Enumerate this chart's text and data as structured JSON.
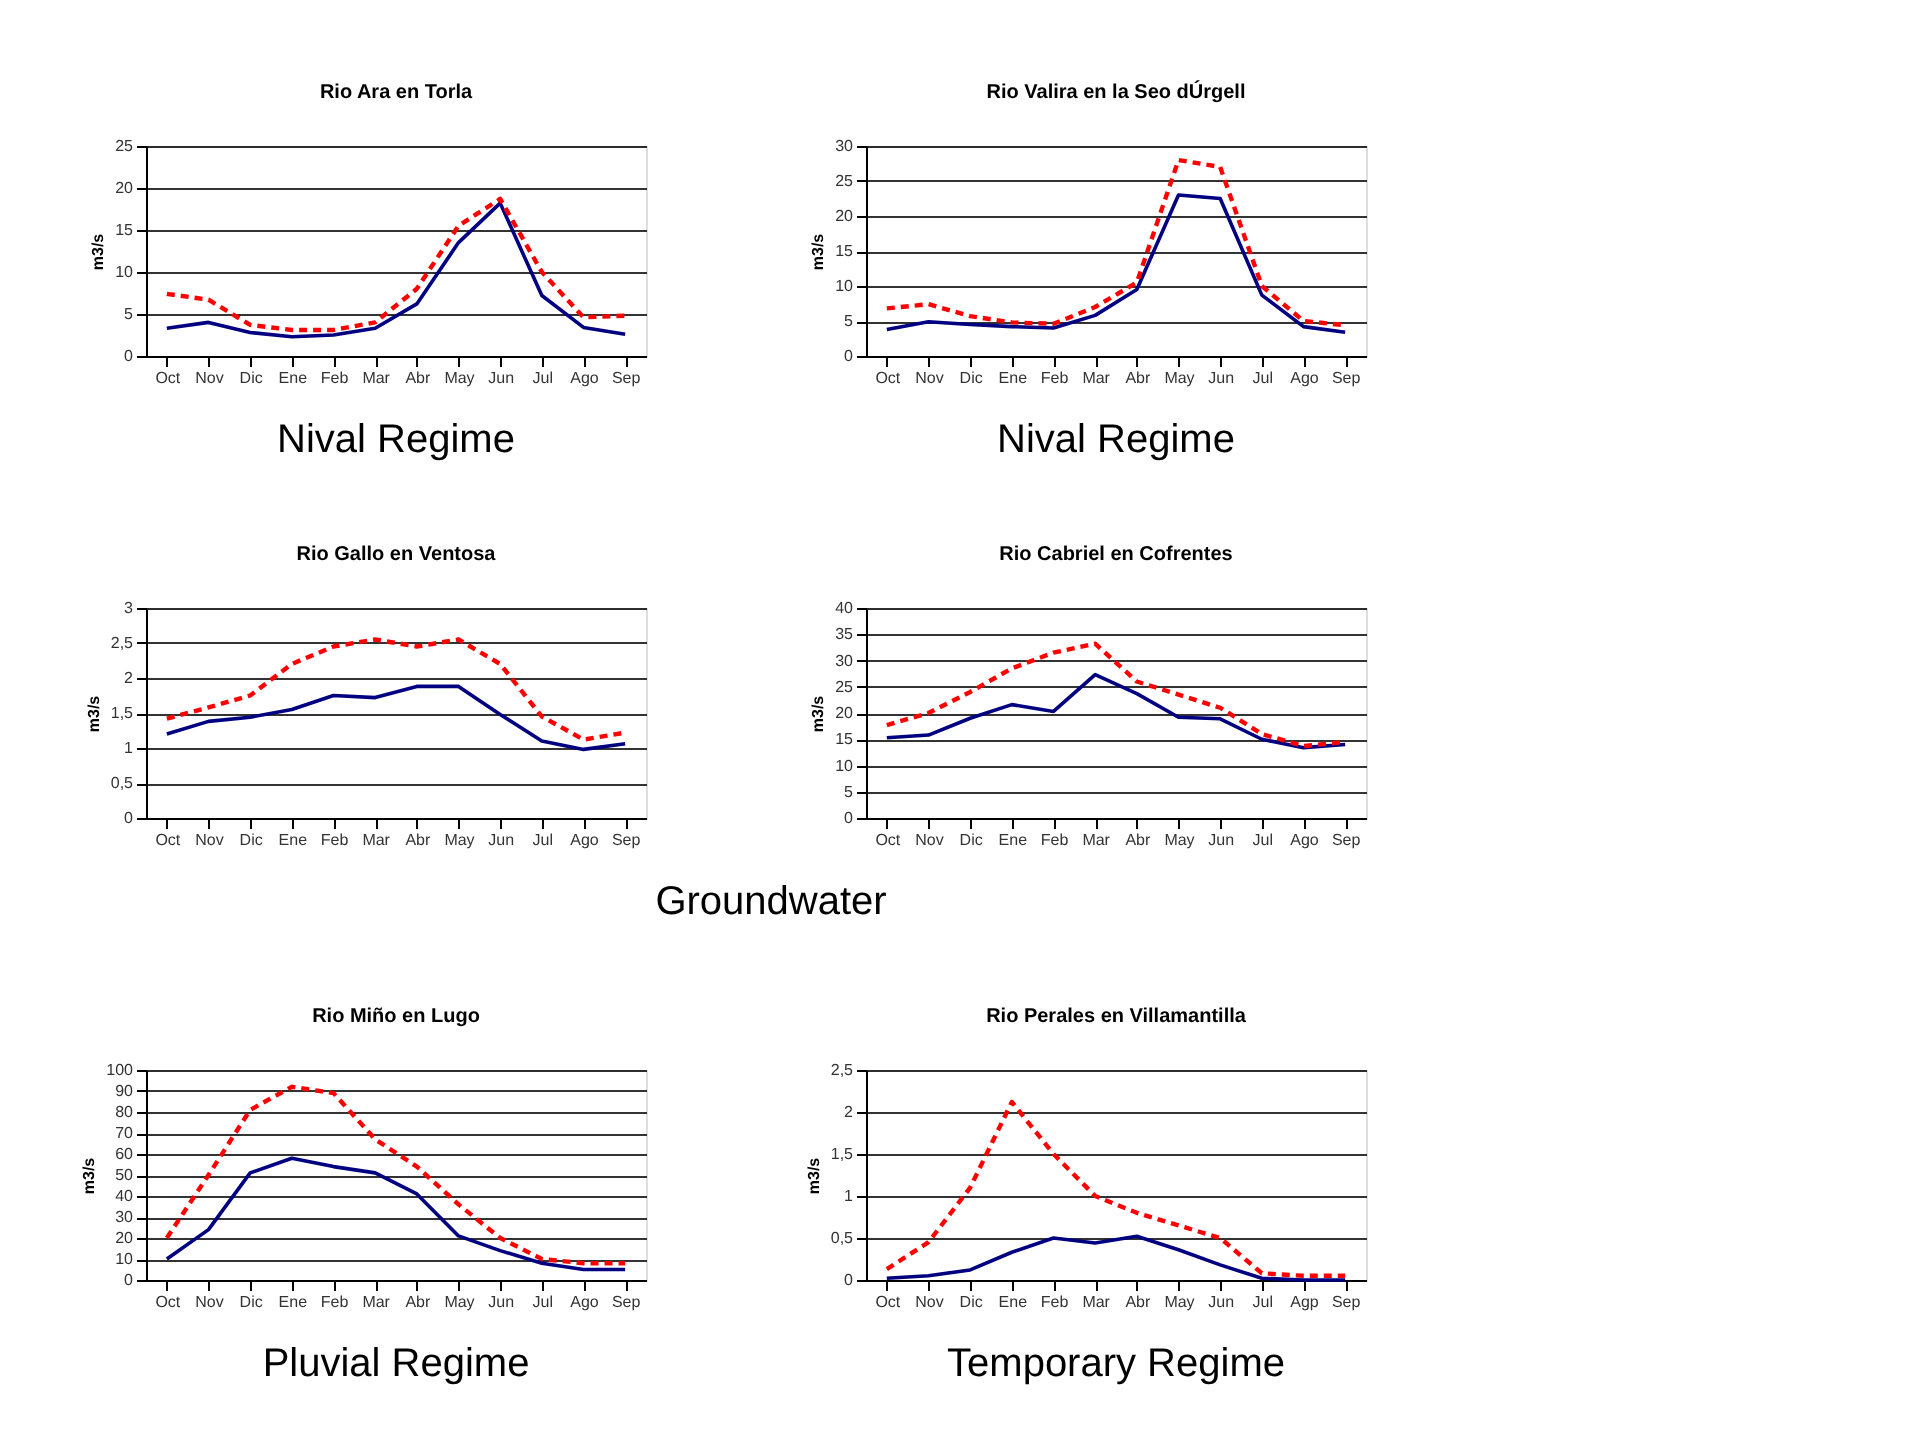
{
  "chart_data": [
    {
      "type": "line",
      "title": "Rio Ara en Torla",
      "ylabel": "m3/s",
      "annotations": [
        "Nival Regime"
      ],
      "categories": [
        "Oct",
        "Nov",
        "Dic",
        "Ene",
        "Feb",
        "Mar",
        "Abr",
        "May",
        "Jun",
        "Jul",
        "Ago",
        "Sep"
      ],
      "ylim": [
        0,
        25
      ],
      "yticks": [
        0,
        5,
        10,
        15,
        20,
        25
      ],
      "grid": "y",
      "marker": "none",
      "series": [
        {
          "color": "#000080",
          "line_style": "solid",
          "values": [
            3.3,
            4,
            2.8,
            2.3,
            2.5,
            3.3,
            6.2,
            13.5,
            18.2,
            7.2,
            3.4,
            2.6
          ]
        },
        {
          "color": "#ff0000",
          "line_style": "dashed",
          "values": [
            7.4,
            6.7,
            3.7,
            3.1,
            3.1,
            4,
            8,
            15.5,
            18.7,
            10,
            4.6,
            4.8
          ]
        }
      ]
    },
    {
      "type": "line",
      "title": "Rio Valira en la Seo dÚrgell",
      "ylabel": "m3/s",
      "annotations": [
        "Nival Regime"
      ],
      "categories": [
        "Oct",
        "Nov",
        "Dic",
        "Ene",
        "Feb",
        "Mar",
        "Abr",
        "May",
        "Jun",
        "Jul",
        "Ago",
        "Sep"
      ],
      "ylim": [
        0,
        30
      ],
      "yticks": [
        0,
        5,
        10,
        15,
        20,
        25,
        30
      ],
      "grid": "y",
      "marker": "none",
      "series": [
        {
          "color": "#000080",
          "line_style": "solid",
          "values": [
            3.8,
            4.9,
            4.5,
            4.2,
            4.0,
            5.8,
            9.5,
            23,
            22.5,
            8.7,
            4.2,
            3.4
          ]
        },
        {
          "color": "#ff0000",
          "line_style": "dashed",
          "values": [
            6.8,
            7.4,
            5.7,
            4.8,
            4.6,
            7,
            10.5,
            28,
            27,
            10,
            5,
            4.4
          ]
        }
      ]
    },
    {
      "type": "line",
      "title": "Rio Gallo en Ventosa",
      "ylabel": "m3/s",
      "annotations": [
        "Groundwater"
      ],
      "categories": [
        "Oct",
        "Nov",
        "Dic",
        "Ene",
        "Feb",
        "Mar",
        "Abr",
        "May",
        "Jun",
        "Jul",
        "Ago",
        "Sep"
      ],
      "ylim": [
        0,
        3
      ],
      "yticks": [
        0,
        {
          "value": 0.5,
          "label": "0,5"
        },
        1,
        {
          "value": 1.5,
          "label": "1,5"
        },
        2,
        {
          "value": 2.5,
          "label": "2,5"
        },
        3
      ],
      "grid": "y",
      "marker": "none",
      "series": [
        {
          "color": "#000080",
          "line_style": "solid",
          "values": [
            1.2,
            1.38,
            1.44,
            1.55,
            1.75,
            1.72,
            1.88,
            1.88,
            1.48,
            1.1,
            0.98,
            1.06
          ]
        },
        {
          "color": "#ff0000",
          "line_style": "dashed",
          "values": [
            1.42,
            1.58,
            1.75,
            2.2,
            2.45,
            2.55,
            2.45,
            2.55,
            2.2,
            1.45,
            1.12,
            1.22
          ]
        }
      ]
    },
    {
      "type": "line",
      "title": "Rio Cabriel en Cofrentes",
      "ylabel": "m3/s",
      "categories": [
        "Oct",
        "Nov",
        "Dic",
        "Ene",
        "Feb",
        "Mar",
        "Abr",
        "May",
        "Jun",
        "Jul",
        "Ago",
        "Sep"
      ],
      "ylim": [
        0,
        40
      ],
      "yticks": [
        0,
        5,
        10,
        15,
        20,
        25,
        30,
        35,
        40
      ],
      "grid": "y",
      "marker": "none",
      "series": [
        {
          "color": "#000080",
          "line_style": "solid",
          "values": [
            15.3,
            15.8,
            19,
            21.6,
            20.3,
            27.3,
            23.7,
            19.2,
            18.9,
            15,
            13.4,
            14
          ]
        },
        {
          "color": "#ff0000",
          "line_style": "dashed",
          "values": [
            17.7,
            20,
            24,
            28.5,
            31.5,
            33.2,
            26,
            23.5,
            21,
            16,
            13.7,
            14.5
          ]
        }
      ]
    },
    {
      "type": "line",
      "title": "Rio Miño en Lugo",
      "ylabel": "m3/s",
      "annotations": [
        "Pluvial Regime"
      ],
      "categories": [
        "Oct",
        "Nov",
        "Dic",
        "Ene",
        "Feb",
        "Mar",
        "Abr",
        "May",
        "Jun",
        "Jul",
        "Ago",
        "Sep"
      ],
      "ylim": [
        0,
        100
      ],
      "yticks": [
        0,
        10,
        20,
        30,
        40,
        50,
        60,
        70,
        80,
        90,
        100
      ],
      "grid": "y",
      "marker": "none",
      "series": [
        {
          "color": "#000080",
          "line_style": "solid",
          "values": [
            10,
            24,
            51,
            58,
            54,
            51,
            41,
            21,
            14,
            8,
            5,
            5
          ]
        },
        {
          "color": "#ff0000",
          "line_style": "dashed",
          "values": [
            20,
            50,
            81,
            92,
            89,
            67,
            54,
            36,
            20,
            10,
            8,
            8
          ]
        }
      ]
    },
    {
      "type": "line",
      "title": "Rio Perales en Villamantilla",
      "ylabel": "m3/s",
      "annotations": [
        "Temporary Regime"
      ],
      "categories": [
        "Oct",
        "Nov",
        "Dic",
        "Ene",
        "Feb",
        "Mar",
        "Abr",
        "May",
        "Jun",
        "Jul",
        "Agp",
        "Sep"
      ],
      "ylim": [
        0,
        2.5
      ],
      "yticks": [
        0,
        {
          "value": 0.5,
          "label": "0,5"
        },
        1,
        {
          "value": 1.5,
          "label": "1,5"
        },
        2,
        {
          "value": 2.5,
          "label": "2,5"
        }
      ],
      "grid": "y",
      "marker": "none",
      "series": [
        {
          "color": "#000080",
          "line_style": "solid",
          "values": [
            0.02,
            0.05,
            0.12,
            0.33,
            0.5,
            0.44,
            0.52,
            0.36,
            0.18,
            0.02,
            0.0,
            0.0
          ]
        },
        {
          "color": "#ff0000",
          "line_style": "dashed",
          "values": [
            0.13,
            0.45,
            1.1,
            2.12,
            1.5,
            1.0,
            0.8,
            0.65,
            0.5,
            0.08,
            0.05,
            0.05
          ]
        }
      ]
    }
  ]
}
